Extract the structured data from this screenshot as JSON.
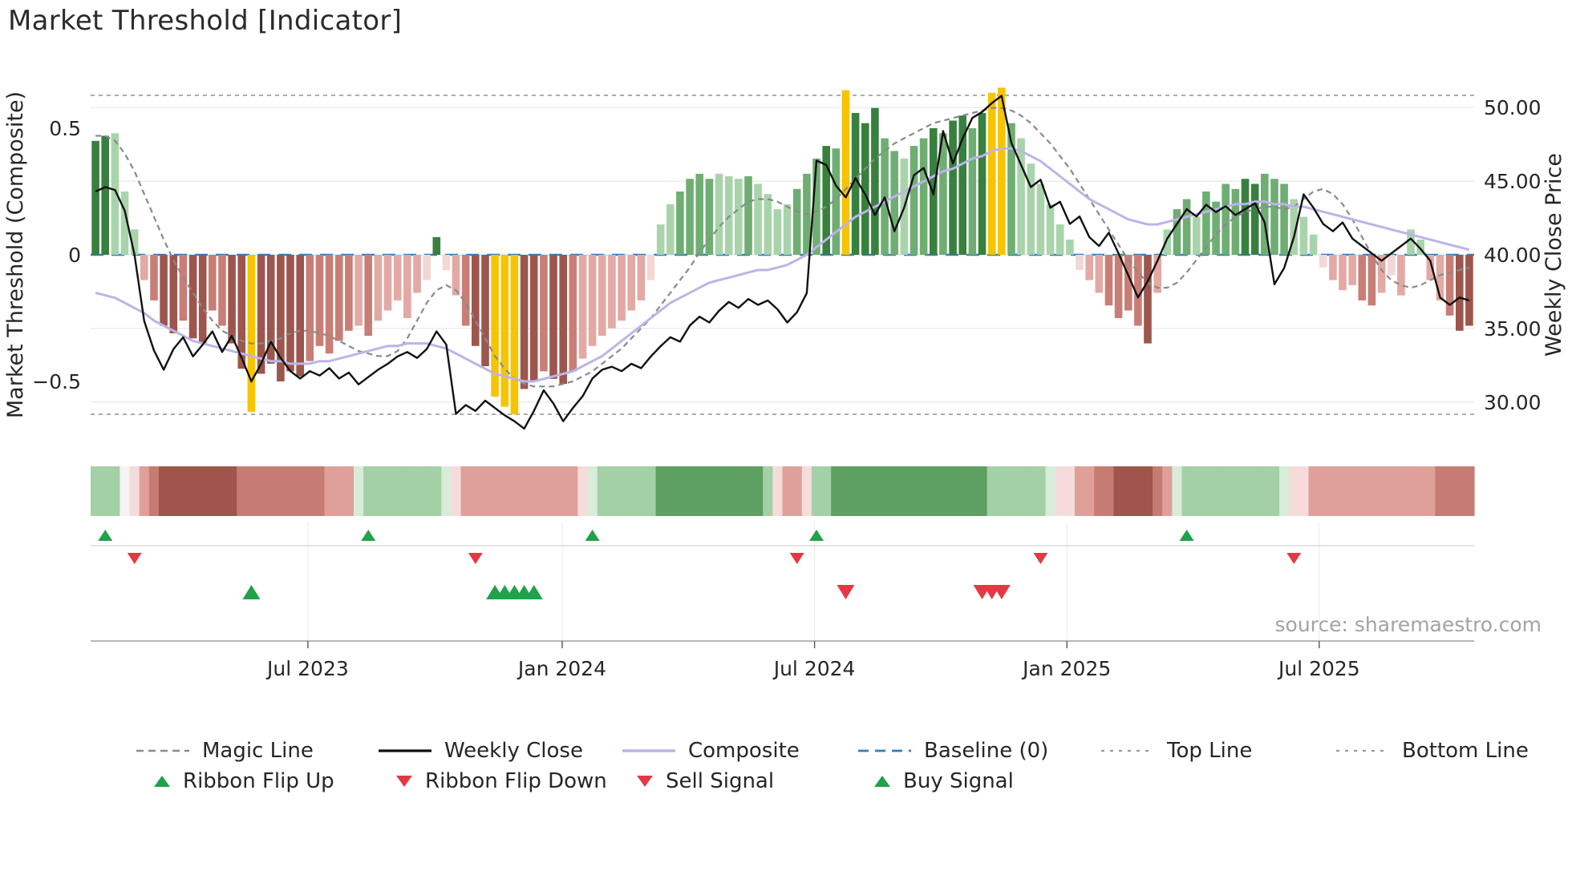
{
  "title": "Market Threshold [Indicator]",
  "source": "source: sharemaestro.com",
  "chart_data": {
    "type": "bar+line",
    "title": "Market Threshold [Indicator]",
    "x_unit": "week",
    "n_weeks": 142,
    "axes": {
      "left_label": "Market Threshold (Composite)",
      "right_label": "Weekly Close Price",
      "left_ticks": [
        {
          "label": "0.5",
          "value": 0.5
        },
        {
          "label": "0",
          "value": 0
        },
        {
          "label": "−0.5",
          "value": -0.5
        }
      ],
      "right_ticks": [
        {
          "label": "50.00",
          "value": 50
        },
        {
          "label": "45.00",
          "value": 45
        },
        {
          "label": "40.00",
          "value": 40
        },
        {
          "label": "35.00",
          "value": 35
        },
        {
          "label": "30.00",
          "value": 30
        }
      ],
      "x_ticks": [
        {
          "label": "Jul 2023",
          "week": 22.3
        },
        {
          "label": "Jan 2024",
          "week": 48.4
        },
        {
          "label": "Jul 2024",
          "week": 74.3
        },
        {
          "label": "Jan 2025",
          "week": 100.2
        },
        {
          "label": "Jul 2025",
          "week": 126.1
        }
      ],
      "left_ylim": [
        -0.75,
        0.73
      ],
      "right_ylim": [
        27.4,
        51.5
      ],
      "grid": "horizontal-faint"
    },
    "reference_lines": {
      "baseline": 0,
      "top_line": 0.63,
      "bottom_line": -0.63
    },
    "bars": {
      "name": "Market Threshold Composite",
      "axis": "left",
      "values": [
        0.45,
        0.47,
        0.48,
        0.25,
        0.1,
        -0.1,
        -0.18,
        -0.28,
        -0.31,
        -0.26,
        -0.33,
        -0.35,
        -0.22,
        -0.28,
        -0.35,
        -0.45,
        -0.62,
        -0.47,
        -0.43,
        -0.5,
        -0.46,
        -0.48,
        -0.42,
        -0.36,
        -0.39,
        -0.34,
        -0.3,
        -0.28,
        -0.32,
        -0.26,
        -0.22,
        -0.18,
        -0.25,
        -0.15,
        -0.1,
        0.07,
        -0.06,
        -0.16,
        -0.28,
        -0.36,
        -0.44,
        -0.56,
        -0.6,
        -0.63,
        -0.53,
        -0.5,
        -0.46,
        -0.49,
        -0.51,
        -0.46,
        -0.41,
        -0.36,
        -0.32,
        -0.29,
        -0.26,
        -0.22,
        -0.18,
        -0.1,
        0.12,
        0.2,
        0.25,
        0.3,
        0.32,
        0.3,
        0.32,
        0.31,
        0.3,
        0.31,
        0.28,
        0.24,
        0.18,
        0.2,
        0.26,
        0.32,
        0.38,
        0.43,
        0.42,
        0.65,
        0.56,
        0.52,
        0.58,
        0.46,
        0.41,
        0.38,
        0.43,
        0.46,
        0.5,
        0.48,
        0.53,
        0.55,
        0.5,
        0.56,
        0.64,
        0.66,
        0.52,
        0.46,
        0.36,
        0.28,
        0.2,
        0.12,
        0.06,
        -0.06,
        -0.1,
        -0.15,
        -0.2,
        -0.25,
        -0.22,
        -0.28,
        -0.35,
        -0.15,
        0.1,
        0.18,
        0.22,
        0.15,
        0.25,
        0.21,
        0.28,
        0.26,
        0.3,
        0.28,
        0.32,
        0.3,
        0.28,
        0.22,
        0.15,
        0.08,
        -0.05,
        -0.1,
        -0.14,
        -0.12,
        -0.18,
        -0.2,
        -0.15,
        -0.08,
        -0.16,
        0.1,
        0.06,
        -0.1,
        -0.18,
        -0.24,
        -0.3,
        -0.28
      ],
      "shades": [
        "g3",
        "g3",
        "g1",
        "g1",
        "g1",
        "r1",
        "r2",
        "r3",
        "r3",
        "r2",
        "r3",
        "r3",
        "r2",
        "r2",
        "r3",
        "r3",
        "y",
        "r3",
        "r3",
        "r3",
        "r3",
        "r3",
        "r2",
        "r2",
        "r2",
        "r2",
        "r2",
        "r1",
        "r2",
        "r1",
        "r1",
        "r1",
        "r1",
        "r1",
        "r0",
        "g3",
        "r0",
        "r1",
        "r2",
        "r3",
        "r3",
        "y",
        "y",
        "y",
        "r3",
        "r3",
        "r2",
        "r3",
        "r3",
        "r2",
        "r1",
        "r1",
        "r1",
        "r1",
        "r1",
        "r1",
        "r1",
        "r0",
        "g1",
        "g1",
        "g2",
        "g2",
        "g2",
        "g2",
        "g1",
        "g1",
        "g1",
        "g2",
        "g1",
        "g1",
        "g1",
        "g1",
        "g2",
        "g2",
        "g2",
        "g3",
        "g2",
        "y",
        "g3",
        "g3",
        "g3",
        "g2",
        "g2",
        "g1",
        "g2",
        "g2",
        "g3",
        "g2",
        "g3",
        "g3",
        "g2",
        "g3",
        "y",
        "y",
        "g2",
        "g1",
        "g1",
        "g1",
        "g1",
        "g1",
        "g1",
        "r0",
        "r1",
        "r1",
        "r2",
        "r2",
        "r2",
        "r2",
        "r3",
        "r1",
        "g1",
        "g2",
        "g2",
        "g1",
        "g2",
        "g2",
        "g2",
        "g2",
        "g3",
        "g3",
        "g2",
        "g2",
        "g2",
        "g1",
        "g1",
        "g1",
        "r0",
        "r1",
        "r1",
        "r1",
        "r2",
        "r2",
        "r1",
        "r0",
        "r1",
        "g1",
        "g1",
        "r1",
        "r1",
        "r2",
        "r3",
        "r3"
      ]
    },
    "lines": [
      {
        "name": "Weekly Close",
        "axis": "right",
        "style": "solid",
        "color_key": "weekly_close",
        "values": [
          44.3,
          44.6,
          44.4,
          43.0,
          40.0,
          35.5,
          33.5,
          32.2,
          33.6,
          34.4,
          33.1,
          33.9,
          34.8,
          33.4,
          34.5,
          33.0,
          31.4,
          32.6,
          34.1,
          33.0,
          32.1,
          31.6,
          32.1,
          31.8,
          32.3,
          31.6,
          32.0,
          31.2,
          31.7,
          32.2,
          32.6,
          33.1,
          33.4,
          33.0,
          33.6,
          34.8,
          33.9,
          29.2,
          29.8,
          29.4,
          30.1,
          29.6,
          29.1,
          28.7,
          28.2,
          29.4,
          30.8,
          29.9,
          28.7,
          29.6,
          30.4,
          31.6,
          32.2,
          32.4,
          32.1,
          32.6,
          32.3,
          33.1,
          33.8,
          34.4,
          34.1,
          35.2,
          35.8,
          35.4,
          36.2,
          36.8,
          36.4,
          37.0,
          36.6,
          36.9,
          36.3,
          35.4,
          36.1,
          37.4,
          46.4,
          46.1,
          44.7,
          43.9,
          45.2,
          44.1,
          42.7,
          43.9,
          41.6,
          43.2,
          45.4,
          45.9,
          44.1,
          48.4,
          46.2,
          47.9,
          49.3,
          49.7,
          50.3,
          50.8,
          47.6,
          46.1,
          44.6,
          45.1,
          43.2,
          43.6,
          42.1,
          42.6,
          41.2,
          40.6,
          41.5,
          40.1,
          38.6,
          37.1,
          38.2,
          39.6,
          41.1,
          42.1,
          43.1,
          42.6,
          43.4,
          42.9,
          43.3,
          42.7,
          43.1,
          43.5,
          42.2,
          38.0,
          39.1,
          41.2,
          44.1,
          43.2,
          42.1,
          41.6,
          42.2,
          41.1,
          40.6,
          40.1,
          39.6,
          40.1,
          40.6,
          41.1,
          40.4,
          39.6,
          37.1,
          36.6,
          37.1,
          36.9
        ]
      },
      {
        "name": "Magic Line",
        "axis": "left",
        "style": "dashed",
        "color_key": "magic_line",
        "values": [
          0.47,
          0.47,
          0.45,
          0.4,
          0.33,
          0.24,
          0.15,
          0.06,
          -0.02,
          -0.09,
          -0.15,
          -0.21,
          -0.26,
          -0.3,
          -0.32,
          -0.34,
          -0.35,
          -0.35,
          -0.34,
          -0.33,
          -0.31,
          -0.3,
          -0.3,
          -0.31,
          -0.32,
          -0.34,
          -0.36,
          -0.38,
          -0.39,
          -0.4,
          -0.4,
          -0.38,
          -0.33,
          -0.26,
          -0.19,
          -0.14,
          -0.12,
          -0.14,
          -0.19,
          -0.26,
          -0.33,
          -0.4,
          -0.45,
          -0.49,
          -0.51,
          -0.52,
          -0.52,
          -0.52,
          -0.51,
          -0.5,
          -0.48,
          -0.46,
          -0.43,
          -0.4,
          -0.37,
          -0.33,
          -0.29,
          -0.25,
          -0.2,
          -0.15,
          -0.1,
          -0.05,
          0.01,
          0.06,
          0.11,
          0.15,
          0.18,
          0.21,
          0.22,
          0.22,
          0.21,
          0.19,
          0.17,
          0.16,
          0.17,
          0.19,
          0.22,
          0.26,
          0.3,
          0.34,
          0.38,
          0.41,
          0.44,
          0.46,
          0.48,
          0.5,
          0.52,
          0.53,
          0.54,
          0.55,
          0.56,
          0.57,
          0.58,
          0.58,
          0.57,
          0.55,
          0.52,
          0.48,
          0.44,
          0.39,
          0.34,
          0.28,
          0.22,
          0.16,
          0.1,
          0.04,
          -0.02,
          -0.07,
          -0.11,
          -0.13,
          -0.13,
          -0.11,
          -0.07,
          -0.02,
          0.03,
          0.08,
          0.12,
          0.15,
          0.17,
          0.18,
          0.19,
          0.19,
          0.18,
          0.19,
          0.22,
          0.25,
          0.26,
          0.24,
          0.2,
          0.14,
          0.07,
          0.0,
          -0.06,
          -0.1,
          -0.12,
          -0.13,
          -0.12,
          -0.1,
          -0.08,
          -0.07,
          -0.06,
          -0.05
        ]
      },
      {
        "name": "Composite",
        "axis": "left",
        "style": "solid",
        "color_key": "composite_line",
        "values": [
          -0.15,
          -0.16,
          -0.17,
          -0.19,
          -0.21,
          -0.23,
          -0.26,
          -0.28,
          -0.3,
          -0.32,
          -0.34,
          -0.35,
          -0.36,
          -0.37,
          -0.38,
          -0.39,
          -0.4,
          -0.41,
          -0.42,
          -0.42,
          -0.43,
          -0.43,
          -0.43,
          -0.42,
          -0.42,
          -0.41,
          -0.4,
          -0.39,
          -0.38,
          -0.37,
          -0.36,
          -0.36,
          -0.35,
          -0.35,
          -0.35,
          -0.36,
          -0.37,
          -0.39,
          -0.41,
          -0.43,
          -0.45,
          -0.47,
          -0.48,
          -0.49,
          -0.5,
          -0.5,
          -0.49,
          -0.48,
          -0.47,
          -0.46,
          -0.44,
          -0.42,
          -0.4,
          -0.37,
          -0.34,
          -0.31,
          -0.28,
          -0.25,
          -0.22,
          -0.19,
          -0.17,
          -0.15,
          -0.13,
          -0.11,
          -0.1,
          -0.09,
          -0.08,
          -0.07,
          -0.06,
          -0.06,
          -0.05,
          -0.04,
          -0.02,
          0.0,
          0.03,
          0.06,
          0.09,
          0.12,
          0.15,
          0.17,
          0.19,
          0.21,
          0.23,
          0.25,
          0.27,
          0.29,
          0.31,
          0.33,
          0.34,
          0.36,
          0.38,
          0.39,
          0.41,
          0.42,
          0.42,
          0.41,
          0.39,
          0.37,
          0.34,
          0.31,
          0.28,
          0.25,
          0.22,
          0.2,
          0.18,
          0.16,
          0.14,
          0.13,
          0.12,
          0.12,
          0.13,
          0.14,
          0.15,
          0.16,
          0.17,
          0.18,
          0.19,
          0.2,
          0.2,
          0.21,
          0.21,
          0.2,
          0.2,
          0.19,
          0.19,
          0.18,
          0.17,
          0.16,
          0.15,
          0.14,
          0.13,
          0.12,
          0.11,
          0.1,
          0.09,
          0.08,
          0.07,
          0.06,
          0.05,
          0.04,
          0.03,
          0.02
        ]
      }
    ],
    "ribbon": [
      "G1",
      "G1",
      "G1",
      "W",
      "R0",
      "R1",
      "R2",
      "R3",
      "R3",
      "R3",
      "R3",
      "R3",
      "R3",
      "R3",
      "R3",
      "R2",
      "R2",
      "R2",
      "R2",
      "R2",
      "R2",
      "R2",
      "R2",
      "R2",
      "R1",
      "R1",
      "R1",
      "G0",
      "G1",
      "G1",
      "G1",
      "G1",
      "G1",
      "G1",
      "G1",
      "G1",
      "G0",
      "R0",
      "R1",
      "R1",
      "R1",
      "R1",
      "R1",
      "R1",
      "R1",
      "R1",
      "R1",
      "R1",
      "R1",
      "R1",
      "R0",
      "G0",
      "G1",
      "G1",
      "G1",
      "G1",
      "G1",
      "G1",
      "G2",
      "G2",
      "G2",
      "G2",
      "G2",
      "G2",
      "G2",
      "G2",
      "G2",
      "G2",
      "G2",
      "G1",
      "R0",
      "R1",
      "R1",
      "R0",
      "G1",
      "G1",
      "G2",
      "G2",
      "G2",
      "G2",
      "G2",
      "G2",
      "G2",
      "G2",
      "G2",
      "G2",
      "G2",
      "G2",
      "G2",
      "G2",
      "G2",
      "G2",
      "G1",
      "G1",
      "G1",
      "G1",
      "G1",
      "G1",
      "G0",
      "R0",
      "R0",
      "R1",
      "R1",
      "R2",
      "R2",
      "R3",
      "R3",
      "R3",
      "R3",
      "R2",
      "R1",
      "G0",
      "G1",
      "G1",
      "G1",
      "G1",
      "G1",
      "G1",
      "G1",
      "G1",
      "G1",
      "G1",
      "G0",
      "R0",
      "R0",
      "R1",
      "R1",
      "R1",
      "R1",
      "R1",
      "R1",
      "R1",
      "R1",
      "R1",
      "R1",
      "R1",
      "R1",
      "R1",
      "R2",
      "R2",
      "R2",
      "R2"
    ],
    "signals": {
      "ribbon_flip_up_weeks": [
        1,
        28,
        51,
        74,
        112
      ],
      "ribbon_flip_down_weeks": [
        4,
        39,
        72,
        97,
        123
      ],
      "buy_signal_weeks": [
        16,
        41,
        42,
        43,
        44,
        45
      ],
      "sell_signal_weeks": [
        77,
        91,
        92,
        93
      ]
    }
  },
  "legend": {
    "row1": [
      {
        "label": "Magic Line",
        "swatch": "dash-gray"
      },
      {
        "label": "Weekly Close",
        "swatch": "line-black"
      },
      {
        "label": "Composite",
        "swatch": "line-lavender"
      },
      {
        "label": "Baseline (0)",
        "swatch": "dash-blue"
      },
      {
        "label": "Top Line",
        "swatch": "dot-gray"
      },
      {
        "label": "Bottom Line",
        "swatch": "dot-gray"
      }
    ],
    "row2": [
      {
        "label": "Ribbon Flip Up",
        "swatch": "tri-up"
      },
      {
        "label": "Ribbon Flip Down",
        "swatch": "tri-down"
      },
      {
        "label": "Sell Signal",
        "swatch": "tri-down"
      },
      {
        "label": "Buy Signal",
        "swatch": "tri-up"
      }
    ]
  },
  "colors": {
    "bar_shades": {
      "g3": "#38803e",
      "g2": "#6fae73",
      "g1": "#a9d4ab",
      "y": "#f6c400",
      "r0": "#f3d7d5",
      "r1": "#e3a9a4",
      "r2": "#c87e76",
      "r3": "#9c564d"
    },
    "ribbon_shades": {
      "G2": "#5da061",
      "G1": "#a3d0a5",
      "G0": "#d8ecd9",
      "W": "#f4f4f4",
      "R0": "#f5dcda",
      "R1": "#dfa09a",
      "R2": "#c67c74",
      "R3": "#a1544b"
    },
    "weekly_close": "#111111",
    "magic_line": "#8a8a8a",
    "composite_line": "#bcb4e8",
    "baseline": "#2f7fbf",
    "top_bottom_line": "#9a9a9a",
    "grid": "#ececec",
    "flip_up_green": "#1fa24b",
    "flip_down_red": "#e23a44",
    "text": "#2b2b2b",
    "muted_text": "#a3a3a3"
  }
}
